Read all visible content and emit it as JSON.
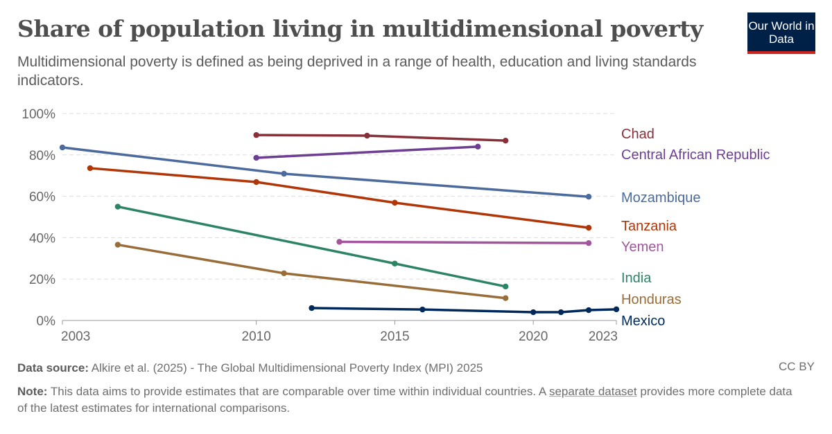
{
  "header": {
    "title": "Share of population living in multidimensional poverty",
    "subtitle": "Multidimensional poverty is defined as being deprived in a range of health, education and living standards indicators.",
    "logo_text": "Our World in Data"
  },
  "footer": {
    "source_label": "Data source:",
    "source_text": "Alkire et al. (2025) - The Global Multidimensional Poverty Index (MPI) 2025",
    "license": "CC BY",
    "note_label": "Note:",
    "note_text_1": "This data aims to provide estimates that are comparable over time within individual countries. A",
    "note_link": "separate dataset",
    "note_text_2": "provides more complete data of the latest estimates for international comparisons."
  },
  "chart_data": {
    "type": "line",
    "xlim": [
      2003,
      2023
    ],
    "ylim": [
      0,
      100
    ],
    "x_ticks": [
      "2003",
      "2010",
      "2015",
      "2020",
      "2023"
    ],
    "y_ticks": [
      "0%",
      "20%",
      "40%",
      "60%",
      "80%",
      "100%"
    ],
    "grid": "horizontal dashed",
    "legend": "right, inline labels",
    "series": [
      {
        "name": "Chad",
        "color": "#883039",
        "x": [
          2010,
          2014,
          2019
        ],
        "y": [
          89.6,
          89.3,
          86.9
        ]
      },
      {
        "name": "Central African Republic",
        "color": "#6D3E91",
        "x": [
          2010,
          2018
        ],
        "y": [
          78.6,
          84.0
        ]
      },
      {
        "name": "Mozambique",
        "color": "#4C6A9C",
        "x": [
          2003,
          2011,
          2022
        ],
        "y": [
          83.6,
          70.9,
          59.8
        ]
      },
      {
        "name": "Tanzania",
        "color": "#B13507",
        "x": [
          2004,
          2010,
          2015,
          2022
        ],
        "y": [
          73.6,
          66.9,
          56.9,
          44.8
        ]
      },
      {
        "name": "Yemen",
        "color": "#A2559C",
        "x": [
          2013,
          2022
        ],
        "y": [
          38.0,
          37.4
        ]
      },
      {
        "name": "India",
        "color": "#2C8465",
        "x": [
          2005,
          2015,
          2019
        ],
        "y": [
          55.0,
          27.5,
          16.4
        ]
      },
      {
        "name": "Honduras",
        "color": "#996D39",
        "x": [
          2005,
          2011,
          2019
        ],
        "y": [
          36.6,
          22.8,
          10.8
        ]
      },
      {
        "name": "Mexico",
        "color": "#00295B",
        "x": [
          2012,
          2016,
          2020,
          2021,
          2022,
          2023
        ],
        "y": [
          6.0,
          5.3,
          4.0,
          4.0,
          5.0,
          5.4
        ]
      }
    ]
  }
}
